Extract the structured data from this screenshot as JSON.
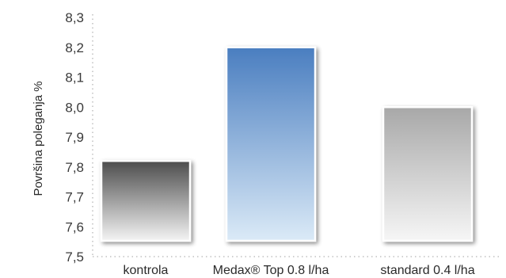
{
  "chart_data": {
    "type": "bar",
    "title": "",
    "xlabel": "",
    "ylabel": "Površina poleganja %",
    "ylim": [
      7.5,
      8.3
    ],
    "yticks": [
      "7,5",
      "7,6",
      "7,7",
      "7,8",
      "7,9",
      "8,0",
      "8,1",
      "8,2",
      "8,3"
    ],
    "categories": [
      "kontrola",
      "Medax® Top 0.8 l/ha",
      "standard 0.4 l/ha"
    ],
    "values": [
      7.82,
      8.2,
      8.0
    ],
    "grid": false,
    "legend": "none",
    "bar_colors": [
      {
        "top": "#4c4c4c",
        "bottom": "#f4f4f4"
      },
      {
        "top": "#4a7ec0",
        "bottom": "#dbeaf7"
      },
      {
        "top": "#a8a8a8",
        "bottom": "#f6f6f6"
      }
    ]
  }
}
